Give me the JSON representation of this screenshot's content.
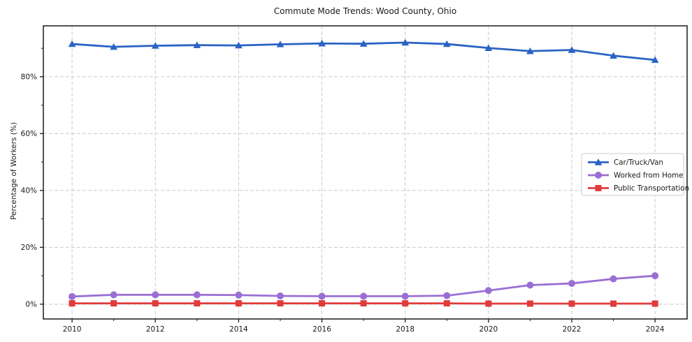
{
  "chart_data": {
    "type": "line",
    "title": "Commute Mode Trends: Wood County, Ohio",
    "xlabel": "",
    "ylabel": "Percentage of Workers (%)",
    "x": [
      2010,
      2011,
      2012,
      2013,
      2014,
      2015,
      2016,
      2017,
      2018,
      2019,
      2020,
      2021,
      2022,
      2023,
      2024
    ],
    "series": [
      {
        "name": "Car/Truck/Van",
        "color": "#2a63c4",
        "marker": "triangle",
        "values": [
          91.5,
          90.5,
          90.9,
          91.1,
          91.0,
          91.4,
          91.7,
          91.6,
          92.0,
          91.5,
          90.1,
          89.0,
          89.4,
          87.4,
          85.9
        ]
      },
      {
        "name": "Worked from Home",
        "color": "#9a6fd4",
        "marker": "circle",
        "values": [
          2.7,
          3.3,
          3.3,
          3.3,
          3.2,
          2.9,
          2.8,
          2.8,
          2.8,
          3.0,
          4.8,
          6.7,
          7.3,
          8.9,
          10.0
        ]
      },
      {
        "name": "Public Transportation",
        "color": "#e23b3b",
        "marker": "square",
        "values": [
          0.3,
          0.3,
          0.3,
          0.3,
          0.3,
          0.3,
          0.3,
          0.3,
          0.3,
          0.3,
          0.2,
          0.2,
          0.2,
          0.2,
          0.2
        ]
      }
    ],
    "xticks": [
      2010,
      2012,
      2014,
      2016,
      2018,
      2020,
      2022,
      2024
    ],
    "xticks_minor": [
      2011,
      2013,
      2015,
      2017,
      2019,
      2021,
      2023
    ],
    "yticks": [
      0,
      20,
      40,
      60,
      80
    ],
    "yticks_minor": [
      10,
      30,
      50,
      70,
      90
    ],
    "ytick_suffix": "%",
    "xlim": [
      2009.31,
      2024.77
    ],
    "ylim": [
      -5.2,
      97.9
    ],
    "grid": true,
    "legend_position": "center right",
    "colors": {
      "grid": "#c9c9c9",
      "spine": "#1a1a1a",
      "legend_border": "#cccccc",
      "legend_bg": "#ffffff",
      "text": "#1a1a1a"
    }
  }
}
